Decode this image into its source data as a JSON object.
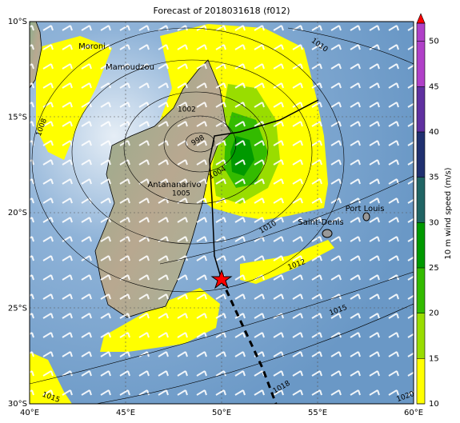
{
  "title": "Forecast of 2018031618 (f012)",
  "axes": {
    "lon_labels": [
      "40°E",
      "45°E",
      "50°E",
      "55°E",
      "60°E"
    ],
    "lat_labels": [
      "10°S",
      "15°S",
      "20°S",
      "25°S",
      "30°S"
    ]
  },
  "places": [
    "Moroni",
    "Mamoudzou",
    "Antananarivo",
    "Saint-Denis",
    "Port Louis"
  ],
  "contour_labels": [
    "1010",
    "1002",
    "1008",
    "998",
    "1004",
    "1005",
    "1010",
    "1012",
    "1015",
    "1018",
    "1015",
    "1020"
  ],
  "colorbar": {
    "label": "10 m wind speed (m/s)",
    "lim": [
      10,
      52
    ],
    "ticks": [
      10,
      15,
      20,
      25,
      30,
      35,
      40,
      45,
      50
    ],
    "arrow_color": "#ff0000",
    "segments": [
      {
        "from": 10,
        "to": 15,
        "color": "#ffff00"
      },
      {
        "from": 15,
        "to": 20,
        "color": "#99dd00"
      },
      {
        "from": 20,
        "to": 25,
        "color": "#33bb00"
      },
      {
        "from": 25,
        "to": 30,
        "color": "#009900"
      },
      {
        "from": 30,
        "to": 35,
        "color": "#206464"
      },
      {
        "from": 35,
        "to": 40,
        "color": "#203070"
      },
      {
        "from": 40,
        "to": 45,
        "color": "#6030a0"
      },
      {
        "from": 45,
        "to": 52,
        "color": "#b040c8"
      }
    ]
  }
}
